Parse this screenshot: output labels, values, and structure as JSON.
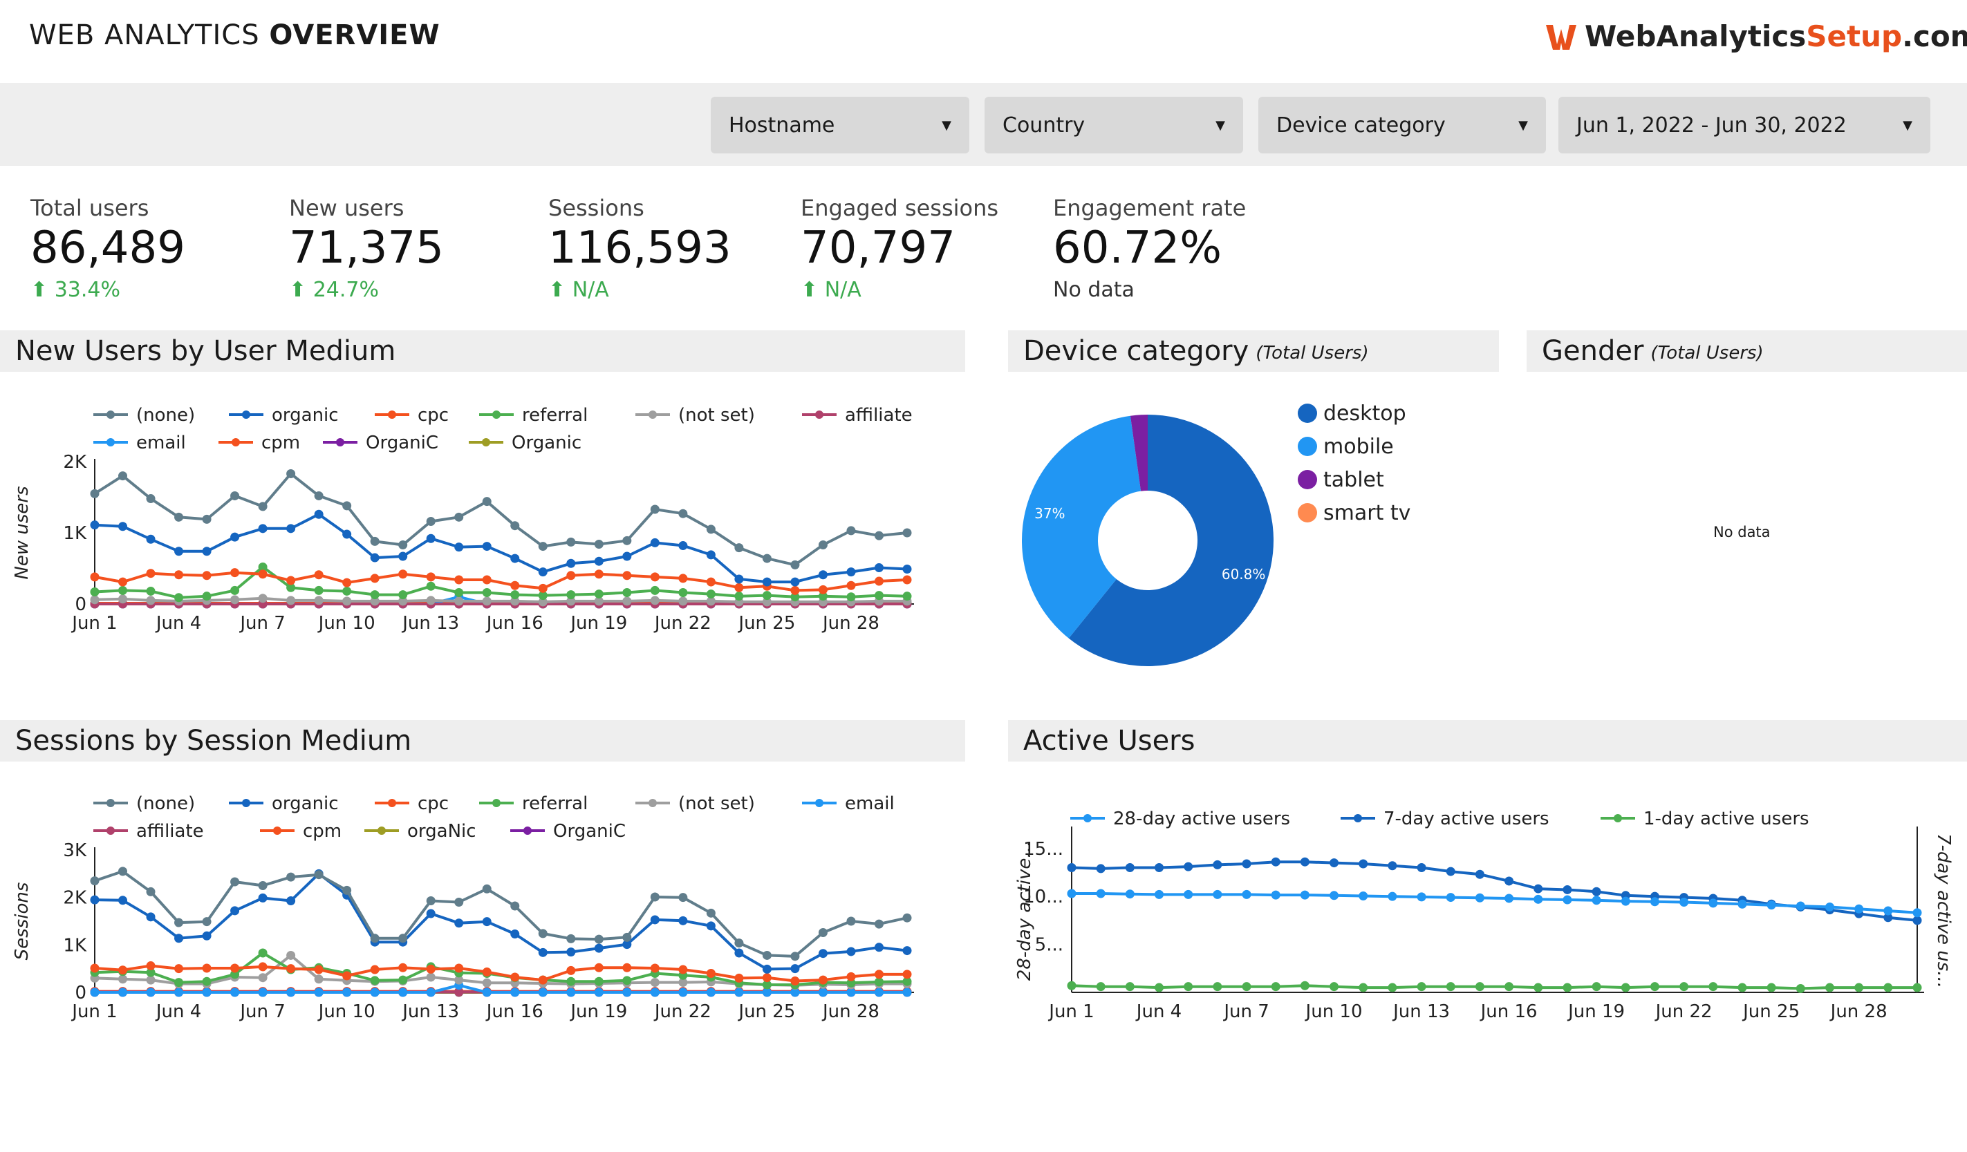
{
  "header": {
    "title_light": "WEB ANALYTICS ",
    "title_bold": "OVERVIEW",
    "logo_a": "WebAnalytics",
    "logo_b": "Setup",
    "logo_c": ".com",
    "colors": {
      "logo_orange": "#e8501c",
      "logo_dark": "#222222"
    }
  },
  "filters": [
    {
      "label": "Hostname"
    },
    {
      "label": "Country"
    },
    {
      "label": "Device category"
    },
    {
      "label": "Jun 1, 2022 - Jun 30, 2022"
    }
  ],
  "kpis": [
    {
      "label": "Total users",
      "value": "86,489",
      "change": "33.4%"
    },
    {
      "label": "New users",
      "value": "71,375",
      "change": "24.7%"
    },
    {
      "label": "Sessions",
      "value": "116,593",
      "change": "N/A"
    },
    {
      "label": "Engaged sessions",
      "value": "70,797",
      "change": "N/A"
    },
    {
      "label": "Engagement rate",
      "value": "60.72%",
      "change": "No data"
    }
  ],
  "sections": {
    "new_users": "New Users by User Medium",
    "device": "Device category",
    "device_sub": "(Total Users)",
    "gender": "Gender",
    "gender_sub": "(Total Users)",
    "gender_empty": "No data",
    "sessions": "Sessions by Session Medium",
    "active": "Active Users"
  },
  "chart_data": [
    {
      "id": "new_users",
      "type": "line",
      "title": "New Users by User Medium",
      "ylabel": "New users",
      "ylim": [
        0,
        2000
      ],
      "yticks": [
        {
          "v": 0,
          "t": "0"
        },
        {
          "v": 1000,
          "t": "1K"
        },
        {
          "v": 2000,
          "t": "2K"
        }
      ],
      "x": [
        "Jun 1",
        "Jun 2",
        "Jun 3",
        "Jun 4",
        "Jun 5",
        "Jun 6",
        "Jun 7",
        "Jun 8",
        "Jun 9",
        "Jun 10",
        "Jun 11",
        "Jun 12",
        "Jun 13",
        "Jun 14",
        "Jun 15",
        "Jun 16",
        "Jun 17",
        "Jun 18",
        "Jun 19",
        "Jun 20",
        "Jun 21",
        "Jun 22",
        "Jun 23",
        "Jun 24",
        "Jun 25",
        "Jun 26",
        "Jun 27",
        "Jun 28",
        "Jun 29",
        "Jun 30"
      ],
      "xticks": [
        "Jun 1",
        "Jun 4",
        "Jun 7",
        "Jun 10",
        "Jun 13",
        "Jun 16",
        "Jun 19",
        "Jun 22",
        "Jun 25",
        "Jun 28"
      ],
      "series": [
        {
          "name": "(none)",
          "color": "#607d8b",
          "values": [
            1550,
            1800,
            1480,
            1220,
            1190,
            1520,
            1370,
            1830,
            1520,
            1380,
            880,
            830,
            1160,
            1220,
            1440,
            1100,
            810,
            870,
            840,
            890,
            1330,
            1270,
            1050,
            790,
            640,
            550,
            830,
            1030,
            960,
            1000
          ]
        },
        {
          "name": "organic",
          "color": "#1565c0",
          "values": [
            1110,
            1090,
            910,
            740,
            740,
            940,
            1060,
            1060,
            1260,
            980,
            650,
            670,
            920,
            800,
            810,
            640,
            450,
            570,
            600,
            670,
            860,
            820,
            690,
            350,
            310,
            310,
            410,
            450,
            510,
            490
          ]
        },
        {
          "name": "cpc",
          "color": "#f4511e",
          "values": [
            380,
            310,
            430,
            410,
            400,
            440,
            420,
            330,
            410,
            300,
            360,
            420,
            380,
            340,
            340,
            260,
            220,
            400,
            420,
            400,
            380,
            360,
            310,
            230,
            250,
            190,
            200,
            260,
            320,
            340
          ]
        },
        {
          "name": "referral",
          "color": "#4caf50",
          "values": [
            170,
            190,
            180,
            90,
            110,
            190,
            520,
            230,
            190,
            180,
            130,
            130,
            250,
            160,
            160,
            130,
            120,
            130,
            140,
            160,
            190,
            160,
            140,
            110,
            120,
            100,
            110,
            100,
            120,
            110
          ]
        },
        {
          "name": "(not set)",
          "color": "#9e9e9e",
          "values": [
            60,
            70,
            50,
            40,
            50,
            60,
            80,
            50,
            50,
            40,
            40,
            40,
            50,
            40,
            40,
            40,
            30,
            40,
            40,
            40,
            50,
            40,
            40,
            30,
            30,
            30,
            30,
            30,
            40,
            40
          ]
        },
        {
          "name": "affiliate",
          "color": "#b0416b",
          "values": [
            0,
            0,
            0,
            0,
            0,
            0,
            0,
            0,
            0,
            0,
            0,
            0,
            0,
            0,
            0,
            0,
            0,
            0,
            0,
            0,
            0,
            0,
            0,
            0,
            0,
            0,
            0,
            0,
            0,
            0
          ]
        },
        {
          "name": "email",
          "color": "#2196f3",
          "values": [
            0,
            0,
            0,
            0,
            0,
            0,
            0,
            0,
            0,
            0,
            0,
            0,
            0,
            100,
            0,
            0,
            0,
            0,
            0,
            0,
            0,
            0,
            0,
            0,
            0,
            0,
            0,
            0,
            0,
            0
          ]
        },
        {
          "name": "cpm",
          "color": "#f4511e",
          "values": [
            10,
            10,
            10,
            10,
            10,
            10,
            10,
            10,
            10,
            10,
            10,
            10,
            10,
            10,
            10,
            10,
            10,
            10,
            10,
            10,
            10,
            10,
            10,
            10,
            10,
            10,
            10,
            10,
            10,
            10
          ]
        },
        {
          "name": "OrganiC",
          "color": "#7b1fa2",
          "values": [
            0,
            0,
            0,
            0,
            0,
            0,
            0,
            0,
            0,
            0,
            0,
            0,
            0,
            0,
            0,
            0,
            0,
            0,
            0,
            0,
            0,
            0,
            0,
            0,
            0,
            0,
            0,
            0,
            0,
            0
          ]
        },
        {
          "name": "Organic",
          "color": "#9e9d24",
          "values": [
            5,
            5,
            5,
            5,
            5,
            5,
            5,
            5,
            5,
            5,
            5,
            5,
            5,
            5,
            5,
            5,
            5,
            5,
            5,
            5,
            5,
            5,
            5,
            5,
            5,
            5,
            5,
            5,
            5,
            5
          ]
        }
      ]
    },
    {
      "id": "device",
      "type": "pie",
      "title": "Device category (Total Users)",
      "categories": [
        "desktop",
        "mobile",
        "tablet",
        "smart tv"
      ],
      "values": [
        60.8,
        37.0,
        2.2,
        0.0
      ],
      "colors": [
        "#1565c0",
        "#2196f3",
        "#7b1fa2",
        "#ff8a50"
      ],
      "labels": [
        "60.8%",
        "37%",
        "",
        ""
      ]
    },
    {
      "id": "sessions",
      "type": "line",
      "title": "Sessions by Session Medium",
      "ylabel": "Sessions",
      "ylim": [
        0,
        3000
      ],
      "yticks": [
        {
          "v": 0,
          "t": "0"
        },
        {
          "v": 1000,
          "t": "1K"
        },
        {
          "v": 2000,
          "t": "2K"
        },
        {
          "v": 3000,
          "t": "3K"
        }
      ],
      "x": [
        "Jun 1",
        "Jun 2",
        "Jun 3",
        "Jun 4",
        "Jun 5",
        "Jun 6",
        "Jun 7",
        "Jun 8",
        "Jun 9",
        "Jun 10",
        "Jun 11",
        "Jun 12",
        "Jun 13",
        "Jun 14",
        "Jun 15",
        "Jun 16",
        "Jun 17",
        "Jun 18",
        "Jun 19",
        "Jun 20",
        "Jun 21",
        "Jun 22",
        "Jun 23",
        "Jun 24",
        "Jun 25",
        "Jun 26",
        "Jun 27",
        "Jun 28",
        "Jun 29",
        "Jun 30"
      ],
      "xticks": [
        "Jun 1",
        "Jun 4",
        "Jun 7",
        "Jun 10",
        "Jun 13",
        "Jun 16",
        "Jun 19",
        "Jun 22",
        "Jun 25",
        "Jun 28"
      ],
      "series": [
        {
          "name": "(none)",
          "color": "#607d8b",
          "values": [
            2350,
            2550,
            2120,
            1470,
            1490,
            2330,
            2250,
            2430,
            2480,
            2150,
            1140,
            1140,
            1930,
            1900,
            2180,
            1820,
            1240,
            1130,
            1120,
            1160,
            2010,
            2000,
            1670,
            1040,
            780,
            760,
            1260,
            1500,
            1440,
            1570
          ]
        },
        {
          "name": "organic",
          "color": "#1565c0",
          "values": [
            1950,
            1940,
            1590,
            1140,
            1190,
            1720,
            1990,
            1930,
            2500,
            2050,
            1060,
            1060,
            1660,
            1460,
            1490,
            1230,
            840,
            850,
            930,
            1010,
            1530,
            1510,
            1400,
            830,
            490,
            500,
            820,
            860,
            950,
            880
          ]
        },
        {
          "name": "cpc",
          "color": "#f4511e",
          "values": [
            510,
            470,
            560,
            500,
            510,
            510,
            540,
            500,
            480,
            350,
            480,
            520,
            490,
            510,
            430,
            320,
            260,
            460,
            520,
            520,
            510,
            480,
            400,
            300,
            310,
            240,
            260,
            330,
            380,
            380
          ]
        },
        {
          "name": "referral",
          "color": "#4caf50",
          "values": [
            420,
            440,
            420,
            210,
            230,
            380,
            830,
            480,
            520,
            400,
            250,
            260,
            540,
            410,
            400,
            310,
            260,
            230,
            230,
            250,
            400,
            360,
            320,
            200,
            160,
            160,
            210,
            200,
            220,
            230
          ]
        },
        {
          "name": "(not set)",
          "color": "#9e9e9e",
          "values": [
            300,
            280,
            260,
            180,
            180,
            320,
            310,
            780,
            280,
            250,
            230,
            240,
            320,
            260,
            200,
            200,
            190,
            180,
            190,
            200,
            210,
            210,
            220,
            180,
            160,
            150,
            170,
            160,
            180,
            180
          ]
        },
        {
          "name": "email",
          "color": "#2196f3",
          "values": [
            0,
            0,
            0,
            0,
            0,
            0,
            0,
            0,
            0,
            0,
            0,
            0,
            0,
            150,
            0,
            0,
            0,
            0,
            0,
            0,
            0,
            0,
            0,
            0,
            0,
            0,
            0,
            0,
            0,
            0
          ]
        },
        {
          "name": "affiliate",
          "color": "#b0416b",
          "values": [
            10,
            10,
            10,
            10,
            10,
            10,
            10,
            10,
            10,
            10,
            10,
            10,
            10,
            10,
            10,
            10,
            10,
            10,
            10,
            10,
            10,
            10,
            10,
            10,
            10,
            10,
            10,
            10,
            10,
            10
          ]
        },
        {
          "name": "cpm",
          "color": "#f4511e",
          "values": [
            20,
            20,
            20,
            20,
            20,
            20,
            20,
            20,
            20,
            20,
            20,
            20,
            20,
            20,
            20,
            20,
            20,
            20,
            20,
            20,
            20,
            20,
            20,
            20,
            20,
            20,
            20,
            20,
            20,
            20
          ]
        },
        {
          "name": "orgaNic",
          "color": "#9e9d24",
          "values": [
            5,
            5,
            5,
            5,
            5,
            5,
            5,
            5,
            5,
            5,
            5,
            5,
            5,
            5,
            5,
            5,
            5,
            5,
            5,
            5,
            5,
            5,
            5,
            5,
            5,
            5,
            5,
            5,
            5,
            5
          ]
        },
        {
          "name": "OrganiC",
          "color": "#7b1fa2",
          "values": [
            0,
            0,
            0,
            0,
            0,
            0,
            0,
            0,
            0,
            0,
            0,
            0,
            0,
            0,
            0,
            0,
            0,
            0,
            0,
            0,
            0,
            0,
            0,
            0,
            0,
            0,
            0,
            0,
            0,
            0
          ]
        }
      ]
    },
    {
      "id": "active",
      "type": "line",
      "title": "Active Users",
      "ylabel": "28-day active...",
      "y2label": "7-day active us...",
      "ylim": [
        0,
        17
      ],
      "yticks": [
        {
          "v": 5,
          "t": "5..."
        },
        {
          "v": 10,
          "t": "10..."
        },
        {
          "v": 15,
          "t": "15..."
        }
      ],
      "x": [
        "Jun 1",
        "Jun 2",
        "Jun 3",
        "Jun 4",
        "Jun 5",
        "Jun 6",
        "Jun 7",
        "Jun 8",
        "Jun 9",
        "Jun 10",
        "Jun 11",
        "Jun 12",
        "Jun 13",
        "Jun 14",
        "Jun 15",
        "Jun 16",
        "Jun 17",
        "Jun 18",
        "Jun 19",
        "Jun 20",
        "Jun 21",
        "Jun 22",
        "Jun 23",
        "Jun 24",
        "Jun 25",
        "Jun 26",
        "Jun 27",
        "Jun 28",
        "Jun 29",
        "Jun 30"
      ],
      "xticks": [
        "Jun 1",
        "Jun 4",
        "Jun 7",
        "Jun 10",
        "Jun 13",
        "Jun 16",
        "Jun 19",
        "Jun 22",
        "Jun 25",
        "Jun 28"
      ],
      "series": [
        {
          "name": "28-day active users",
          "color": "#2196f3",
          "values": [
            10.3,
            10.3,
            10.25,
            10.2,
            10.2,
            10.2,
            10.2,
            10.15,
            10.15,
            10.1,
            10.05,
            10.0,
            9.95,
            9.9,
            9.85,
            9.8,
            9.7,
            9.65,
            9.6,
            9.5,
            9.45,
            9.4,
            9.3,
            9.2,
            9.1,
            9.0,
            8.9,
            8.7,
            8.5,
            8.3
          ]
        },
        {
          "name": "7-day active users",
          "color": "#1565c0",
          "values": [
            13.0,
            12.9,
            13.0,
            13.0,
            13.1,
            13.3,
            13.4,
            13.6,
            13.6,
            13.5,
            13.4,
            13.2,
            13.0,
            12.6,
            12.3,
            11.6,
            10.8,
            10.7,
            10.5,
            10.1,
            10.0,
            9.9,
            9.8,
            9.6,
            9.2,
            8.9,
            8.6,
            8.2,
            7.8,
            7.5
          ]
        },
        {
          "name": "1-day active users",
          "color": "#4caf50",
          "values": [
            0.7,
            0.6,
            0.6,
            0.5,
            0.6,
            0.6,
            0.6,
            0.6,
            0.7,
            0.6,
            0.5,
            0.5,
            0.6,
            0.6,
            0.6,
            0.6,
            0.5,
            0.5,
            0.6,
            0.5,
            0.6,
            0.6,
            0.6,
            0.5,
            0.5,
            0.4,
            0.5,
            0.5,
            0.5,
            0.5
          ]
        }
      ]
    }
  ]
}
